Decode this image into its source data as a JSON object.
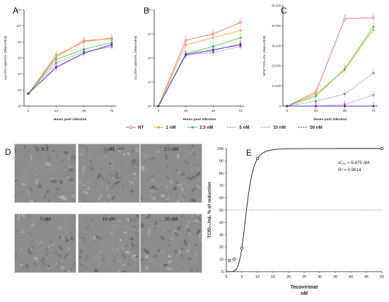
{
  "panel_letters": {
    "a": "A",
    "b": "B",
    "c": "C",
    "d": "D",
    "e": "E"
  },
  "legend": [
    {
      "name": "NT",
      "color": "#e05a5a",
      "marker": "circle"
    },
    {
      "name": "1 nM",
      "color": "#f0a030",
      "marker": "square"
    },
    {
      "name": "2.5 nM",
      "color": "#32c832",
      "marker": "square"
    },
    {
      "name": "5 nM",
      "color": "#808080",
      "marker": "dash"
    },
    {
      "name": "10 nM",
      "color": "#e050e0",
      "marker": "dash"
    },
    {
      "name": "50 nM",
      "color": "#3030d0",
      "marker": "dash"
    }
  ],
  "micrographs": [
    "N.T.",
    "1 nM",
    "2.5 nM",
    "5 nM",
    "10 nM",
    "50 nM"
  ],
  "chart_data": [
    {
      "type": "line",
      "id": "A",
      "xlabel": "Hours post infection",
      "ylabel": "Log DNA copies/mL (Mean±SEM)",
      "x": [
        0,
        24,
        48,
        72
      ],
      "ylog": true,
      "ylim": [
        100000,
        100000000000
      ],
      "ytick_labels": [
        "10⁵",
        "10⁶",
        "10⁷",
        "10⁸",
        "10⁹",
        "10¹⁰",
        "10¹¹"
      ],
      "series": [
        {
          "name": "NT",
          "values": [
            600000,
            120000000,
            1200000000,
            1600000000
          ]
        },
        {
          "name": "1 nM",
          "values": [
            600000,
            150000000,
            1000000000,
            1800000000
          ]
        },
        {
          "name": "2.5 nM",
          "values": [
            600000,
            80000000,
            350000000,
            900000000
          ]
        },
        {
          "name": "5 nM",
          "values": [
            600000,
            50000000,
            250000000,
            500000000
          ]
        },
        {
          "name": "10 nM",
          "values": [
            600000,
            30000000,
            200000000,
            600000000
          ]
        },
        {
          "name": "50 nM",
          "values": [
            600000,
            25000000,
            200000000,
            700000000
          ]
        }
      ]
    },
    {
      "type": "line",
      "id": "B",
      "xlabel": "Hours post infection",
      "ylabel": "Log DNA copies/mL (Mean±SEM)",
      "x": [
        0,
        24,
        48,
        72
      ],
      "ylog": true,
      "ylim": [
        1000000,
        10000000000
      ],
      "ytick_labels": [
        "10⁶",
        "10⁷",
        "10⁸",
        "10⁹",
        "10¹⁰"
      ],
      "series": [
        {
          "name": "NT",
          "values": [
            1000000,
            550000000,
            1000000000,
            3000000000
          ]
        },
        {
          "name": "1 nM",
          "values": [
            1000000,
            350000000,
            700000000,
            1400000000
          ]
        },
        {
          "name": "2.5 nM",
          "values": [
            1000000,
            150000000,
            300000000,
            700000000
          ]
        },
        {
          "name": "5 nM",
          "values": [
            1000000,
            130000000,
            200000000,
            400000000
          ]
        },
        {
          "name": "10 nM",
          "values": [
            1000000,
            130000000,
            170000000,
            300000000
          ]
        },
        {
          "name": "50 nM",
          "values": [
            1000000,
            140000000,
            220000000,
            350000000
          ]
        }
      ]
    },
    {
      "type": "line",
      "id": "C",
      "xlabel": "Hours post infection",
      "ylabel": "MFW TCID₅₀/mL (Mean±SEM)",
      "x": [
        0,
        24,
        48,
        72
      ],
      "ylog": false,
      "ylim": [
        0,
        50000
      ],
      "ytick_labels": [
        "0",
        "10,000",
        "20,000",
        "30,000",
        "40,000",
        "50,000"
      ],
      "series": [
        {
          "name": "NT",
          "values": [
            0,
            7000,
            43500,
            44000
          ]
        },
        {
          "name": "1 nM",
          "values": [
            0,
            6000,
            18000,
            38000
          ]
        },
        {
          "name": "2.5 nM",
          "values": [
            0,
            5000,
            18500,
            39500
          ]
        },
        {
          "name": "5 nM",
          "values": [
            0,
            2500,
            6000,
            16500
          ]
        },
        {
          "name": "10 nM",
          "values": [
            0,
            0,
            800,
            5500
          ]
        },
        {
          "name": "50 nM",
          "values": [
            0,
            0,
            0,
            0
          ]
        }
      ]
    },
    {
      "type": "scatter",
      "id": "E",
      "xlabel": "Tecovirimat",
      "xlabel2": "nM",
      "ylabel": "TCID₅₀/mL % of reduction",
      "xlim": [
        0,
        50
      ],
      "ylim": [
        0,
        100
      ],
      "xticks": [
        0,
        5,
        10,
        15,
        20,
        25,
        30,
        35,
        40,
        45,
        50
      ],
      "yticks": [
        0,
        10,
        20,
        30,
        40,
        50,
        60,
        70,
        80,
        90,
        100
      ],
      "points": [
        {
          "x": 1,
          "y": 9
        },
        {
          "x": 2.5,
          "y": 10
        },
        {
          "x": 5,
          "y": 19
        },
        {
          "x": 10,
          "y": 92
        },
        {
          "x": 50,
          "y": 100
        }
      ],
      "annotation_ic50": "IC₅₀ = 6.475 nM",
      "annotation_r2": "R² = 0.9814",
      "reference_line_y": 50
    }
  ]
}
